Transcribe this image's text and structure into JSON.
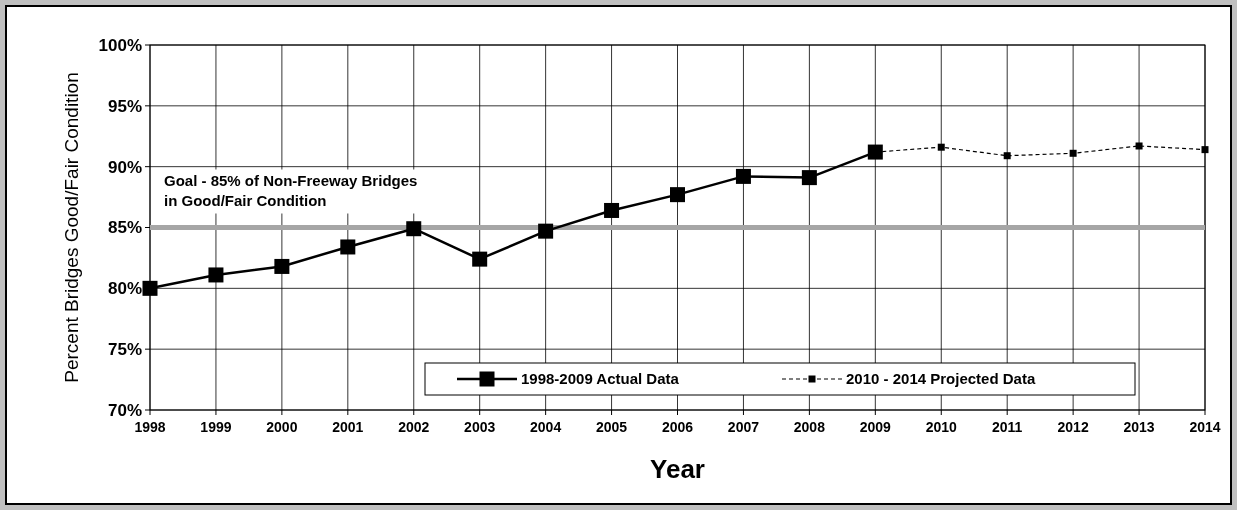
{
  "chart_data": {
    "type": "line",
    "xlabel": "Year",
    "ylabel": "Percent Bridges Good/Fair Condition",
    "categories": [
      "1998",
      "1999",
      "2000",
      "2001",
      "2002",
      "2003",
      "2004",
      "2005",
      "2006",
      "2007",
      "2008",
      "2009",
      "2010",
      "2011",
      "2012",
      "2013",
      "2014"
    ],
    "series": [
      {
        "name": "1998-2009 Actual Data",
        "color": "#000000",
        "marker": "square",
        "line_style": "solid",
        "values": [
          80.0,
          81.1,
          81.8,
          83.4,
          84.9,
          82.4,
          84.7,
          86.4,
          87.7,
          89.2,
          89.1,
          91.2,
          null,
          null,
          null,
          null,
          null
        ]
      },
      {
        "name": "2010 - 2014 Projected Data",
        "color": "#000000",
        "marker": "square",
        "line_style": "dashed",
        "values": [
          null,
          null,
          null,
          null,
          null,
          null,
          null,
          null,
          null,
          null,
          null,
          91.2,
          91.6,
          90.9,
          91.1,
          91.7,
          91.4
        ]
      }
    ],
    "ylim": [
      70,
      100
    ],
    "yticks": [
      {
        "value": 70,
        "label": "70%"
      },
      {
        "value": 75,
        "label": "75%"
      },
      {
        "value": 80,
        "label": "80%"
      },
      {
        "value": 85,
        "label": "85%"
      },
      {
        "value": 90,
        "label": "90%"
      },
      {
        "value": 95,
        "label": "95%"
      },
      {
        "value": 100,
        "label": "100%"
      }
    ],
    "ref_lines": [
      {
        "axis": "y",
        "value": 85,
        "label": "Goal - 85% of Non-Freeway Bridges\nin Good/Fair Condition",
        "color": "#a6a6a6"
      }
    ],
    "grid": true,
    "legend": "bottom"
  }
}
